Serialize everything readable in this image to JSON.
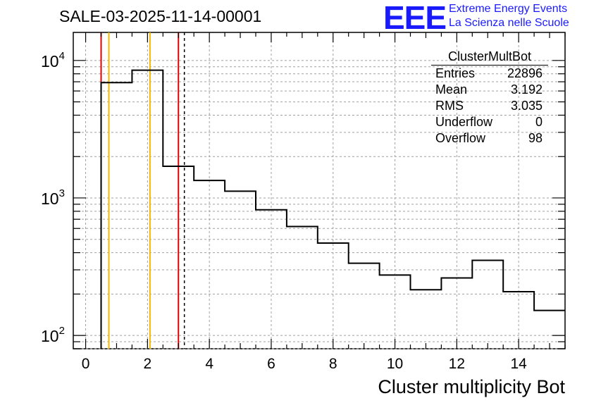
{
  "header": {
    "run_title": "SALE-03-2025-11-14-00001",
    "logo": "EEE",
    "tagline_1": "Extreme Energy Events",
    "tagline_2": "La Scienza nelle Scuole"
  },
  "stats_box": {
    "title": "ClusterMultBot",
    "rows": [
      {
        "label": "Entries",
        "value": "22896"
      },
      {
        "label": "Mean",
        "value": "3.192"
      },
      {
        "label": "RMS",
        "value": "3.035"
      },
      {
        "label": "Underflow",
        "value": "0"
      },
      {
        "label": "Overflow",
        "value": "98"
      }
    ]
  },
  "colors": {
    "histogram": "#000000",
    "red_line": "#e00000",
    "orange_line": "#f5b800",
    "grid": "#a0a0a0",
    "logo_blue": "#1a1aff"
  },
  "chart_data": {
    "type": "histogram",
    "title": "",
    "xlabel": "Cluster multiplicity Bot",
    "ylabel": "",
    "xlim": [
      -0.4,
      15.5
    ],
    "ylim": [
      80,
      16000
    ],
    "y_scale": "log",
    "grid": true,
    "x_ticks": [
      0,
      2,
      4,
      6,
      8,
      10,
      12,
      14
    ],
    "y_tick_labels": [
      {
        "base": "10",
        "exp": "2",
        "value": 100
      },
      {
        "base": "10",
        "exp": "3",
        "value": 1000
      },
      {
        "base": "10",
        "exp": "4",
        "value": 10000
      }
    ],
    "bin_edges": [
      0.5,
      1.5,
      2.5,
      3.5,
      4.5,
      5.5,
      6.5,
      7.5,
      8.5,
      9.5,
      10.5,
      11.5,
      12.5,
      13.5,
      14.5,
      15.5
    ],
    "counts": [
      6900,
      8500,
      1700,
      1340,
      1120,
      820,
      620,
      470,
      335,
      275,
      215,
      262,
      352,
      208,
      152
    ],
    "vertical_lines": [
      {
        "x": 0.5,
        "color": "red",
        "style": "solid"
      },
      {
        "x": 0.75,
        "color": "orange",
        "style": "solid"
      },
      {
        "x": 2.08,
        "color": "orange",
        "style": "solid"
      },
      {
        "x": 3.0,
        "color": "red",
        "style": "solid"
      },
      {
        "x": 3.192,
        "color": "black",
        "style": "dashed"
      }
    ]
  }
}
